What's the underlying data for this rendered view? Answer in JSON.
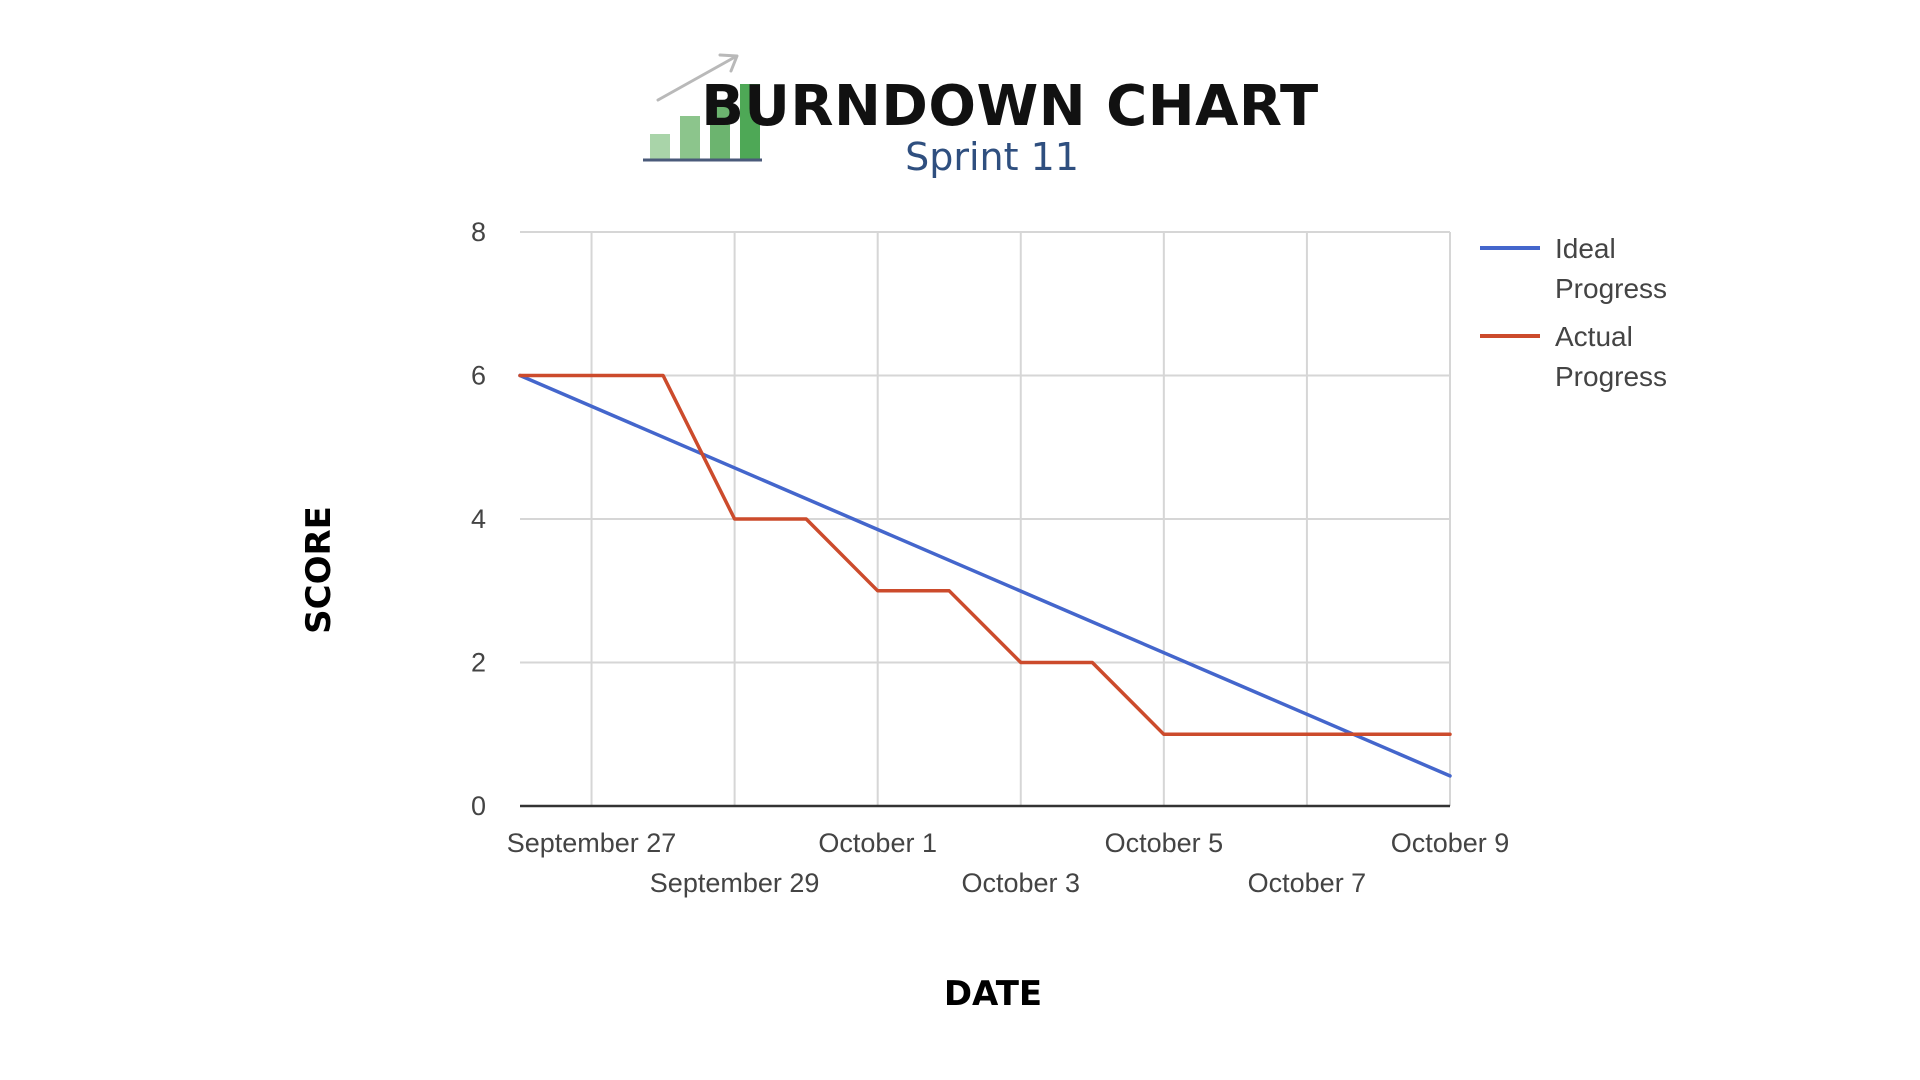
{
  "header": {
    "title": "BURNDOWN CHART",
    "subtitle": "Sprint 11",
    "icon": "bar-chart-trend-icon"
  },
  "colors": {
    "title": "#111111",
    "subtitle": "#2f4f7f",
    "ideal": "#4466cc",
    "actual": "#cc4b2c",
    "grid": "#d6d6d6",
    "axis": "#333333",
    "tick": "#444444",
    "icon_bars": [
      "#a9d4a9",
      "#8cc58c",
      "#6cb46f",
      "#4ea856"
    ],
    "icon_arrow": "#b9b9b9",
    "icon_base": "#4a5a7a"
  },
  "chart_data": {
    "type": "line",
    "xlabel": "DATE",
    "ylabel": "SCORE",
    "ylim": [
      0,
      8
    ],
    "yticks": [
      0,
      2,
      4,
      6,
      8
    ],
    "xlim": [
      "2021-09-26",
      "2021-10-09"
    ],
    "xticks": [
      {
        "date": "2021-09-27",
        "label": "September 27"
      },
      {
        "date": "2021-09-29",
        "label": "September 29"
      },
      {
        "date": "2021-10-01",
        "label": "October 1"
      },
      {
        "date": "2021-10-03",
        "label": "October 3"
      },
      {
        "date": "2021-10-05",
        "label": "October 5"
      },
      {
        "date": "2021-10-07",
        "label": "October 7"
      },
      {
        "date": "2021-10-09",
        "label": "October 9"
      }
    ],
    "grid": true,
    "legend": "right",
    "series": [
      {
        "name": "Ideal Progress",
        "legend_lines": [
          "Ideal",
          "Progress"
        ],
        "color": "#4466cc",
        "points": [
          {
            "x": "2021-09-26",
            "y": 6
          },
          {
            "x": "2021-10-09",
            "y": 0.42
          }
        ]
      },
      {
        "name": "Actual Progress",
        "legend_lines": [
          "Actual",
          "Progress"
        ],
        "color": "#cc4b2c",
        "points": [
          {
            "x": "2021-09-26",
            "y": 6
          },
          {
            "x": "2021-09-28",
            "y": 6
          },
          {
            "x": "2021-09-29",
            "y": 4
          },
          {
            "x": "2021-09-30",
            "y": 4
          },
          {
            "x": "2021-10-01",
            "y": 3
          },
          {
            "x": "2021-10-02",
            "y": 3
          },
          {
            "x": "2021-10-03",
            "y": 2
          },
          {
            "x": "2021-10-04",
            "y": 2
          },
          {
            "x": "2021-10-05",
            "y": 1
          },
          {
            "x": "2021-10-09",
            "y": 1
          }
        ]
      }
    ]
  }
}
